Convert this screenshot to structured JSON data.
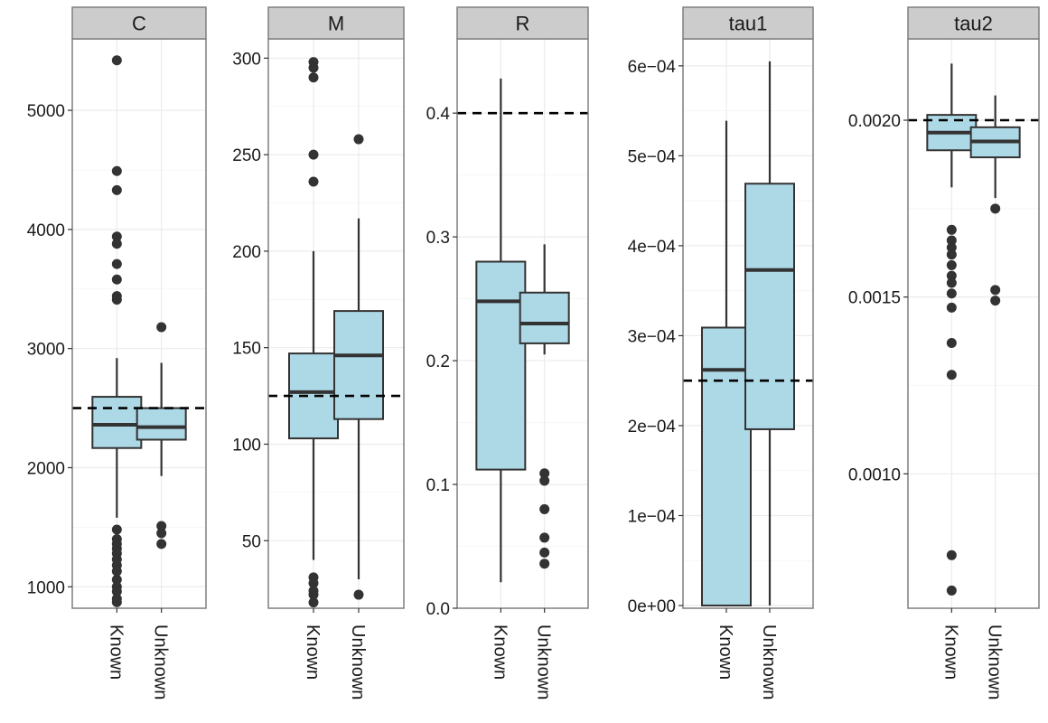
{
  "chart_data": [
    {
      "type": "box",
      "panel": "C",
      "categories": [
        "Known",
        "Unknown"
      ],
      "ylim": [
        820,
        5600
      ],
      "yticks": [
        1000,
        2000,
        3000,
        4000,
        5000
      ],
      "ytick_labels": [
        "1000",
        "2000",
        "3000",
        "4000",
        "5000"
      ],
      "reference_line": 2500,
      "boxes": [
        {
          "category": "Known",
          "q1": 2165,
          "median": 2360,
          "q3": 2595,
          "whisker_low": 1580,
          "whisker_high": 2920,
          "outliers": [
            5420,
            4490,
            4330,
            3940,
            3880,
            3710,
            3580,
            3440,
            3410,
            1480,
            1400,
            1360,
            1320,
            1280,
            1230,
            1180,
            1130,
            1060,
            1000,
            960,
            900,
            870
          ]
        },
        {
          "category": "Unknown",
          "q1": 2235,
          "median": 2340,
          "q3": 2500,
          "whisker_low": 1930,
          "whisker_high": 2880,
          "outliers": [
            3180,
            1510,
            1450,
            1360
          ]
        }
      ]
    },
    {
      "type": "box",
      "panel": "M",
      "categories": [
        "Known",
        "Unknown"
      ],
      "ylim": [
        15,
        310
      ],
      "yticks": [
        50,
        100,
        150,
        200,
        250,
        300
      ],
      "ytick_labels": [
        "50",
        "100",
        "150",
        "200",
        "250",
        "300"
      ],
      "reference_line": 125,
      "boxes": [
        {
          "category": "Known",
          "q1": 103,
          "median": 127,
          "q3": 147,
          "whisker_low": 40,
          "whisker_high": 200,
          "outliers": [
            298,
            295,
            290,
            250,
            236,
            31,
            28,
            24,
            22,
            18
          ]
        },
        {
          "category": "Unknown",
          "q1": 113,
          "median": 146,
          "q3": 169,
          "whisker_low": 30,
          "whisker_high": 217,
          "outliers": [
            258,
            22
          ]
        }
      ]
    },
    {
      "type": "box",
      "panel": "R",
      "categories": [
        "Known",
        "Unknown"
      ],
      "ylim": [
        0.0,
        0.46
      ],
      "yticks": [
        0.0,
        0.1,
        0.2,
        0.3,
        0.4
      ],
      "ytick_labels": [
        "0.0",
        "0.1",
        "0.2",
        "0.3",
        "0.4"
      ],
      "reference_line": 0.4,
      "boxes": [
        {
          "category": "Known",
          "q1": 0.112,
          "median": 0.248,
          "q3": 0.28,
          "whisker_low": 0.021,
          "whisker_high": 0.428,
          "outliers": []
        },
        {
          "category": "Unknown",
          "q1": 0.214,
          "median": 0.23,
          "q3": 0.255,
          "whisker_low": 0.205,
          "whisker_high": 0.294,
          "outliers": [
            0.109,
            0.103,
            0.08,
            0.057,
            0.045,
            0.036
          ]
        }
      ]
    },
    {
      "type": "box",
      "panel": "tau1",
      "categories": [
        "Known",
        "Unknown"
      ],
      "ylim": [
        -3e-06,
        0.00063
      ],
      "yticks": [
        0.0,
        0.0001,
        0.0002,
        0.0003,
        0.0004,
        0.0005,
        0.0006
      ],
      "ytick_labels": [
        "0e+00",
        "1e−04",
        "2e−04",
        "3e−04",
        "4e−04",
        "5e−04",
        "6e−04"
      ],
      "reference_line": 0.00025,
      "boxes": [
        {
          "category": "Known",
          "q1": 0.0,
          "median": 0.000262,
          "q3": 0.000309,
          "whisker_low": 0.0,
          "whisker_high": 0.000539,
          "outliers": []
        },
        {
          "category": "Unknown",
          "q1": 0.000196,
          "median": 0.000373,
          "q3": 0.000469,
          "whisker_low": 0.0,
          "whisker_high": 0.000605,
          "outliers": []
        }
      ]
    },
    {
      "type": "box",
      "panel": "tau2",
      "categories": [
        "Known",
        "Unknown"
      ],
      "ylim": [
        0.00062,
        0.00223
      ],
      "yticks": [
        0.001,
        0.0015,
        0.002
      ],
      "ytick_labels": [
        "0.0010",
        "0.0015",
        "0.0020"
      ],
      "reference_line": 0.002,
      "boxes": [
        {
          "category": "Known",
          "q1": 0.001915,
          "median": 0.001965,
          "q3": 0.002015,
          "whisker_low": 0.00181,
          "whisker_high": 0.00216,
          "outliers": [
            0.00169,
            0.00166,
            0.00164,
            0.00162,
            0.00159,
            0.00156,
            0.00154,
            0.00151,
            0.00147,
            0.00137,
            0.00128,
            0.00077,
            0.00067
          ]
        },
        {
          "category": "Unknown",
          "q1": 0.001895,
          "median": 0.00194,
          "q3": 0.00198,
          "whisker_low": 0.00178,
          "whisker_high": 0.00207,
          "outliers": [
            0.00175,
            0.00152,
            0.00149
          ]
        }
      ]
    }
  ],
  "colors": {
    "box_fill": "#add8e6",
    "box_stroke": "#333333",
    "point": "#333333",
    "strip_fill": "#cccccc",
    "strip_stroke": "#7f7f7f",
    "panel_border": "#7f7f7f",
    "grid": "#ebebeb",
    "reference_line": "#000000"
  }
}
